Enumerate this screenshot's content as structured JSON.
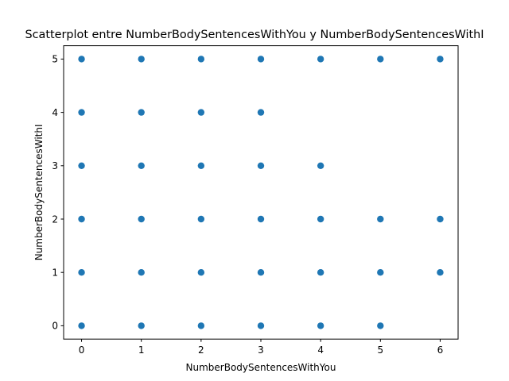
{
  "chart_data": {
    "type": "scatter",
    "title": "Scatterplot entre NumberBodySentencesWithYou y NumberBodySentencesWithI",
    "xlabel": "NumberBodySentencesWithYou",
    "ylabel": "NumberBodySentencesWithI",
    "xlim": [
      -0.3,
      6.3
    ],
    "ylim": [
      -0.25,
      5.25
    ],
    "xticks": [
      "0",
      "1",
      "2",
      "3",
      "4",
      "5",
      "6"
    ],
    "yticks": [
      "0",
      "1",
      "2",
      "3",
      "4",
      "5"
    ],
    "grid": false,
    "marker_color": "#1f77b4",
    "series": [
      {
        "x": [
          0,
          0,
          0,
          0,
          0,
          0,
          1,
          1,
          1,
          1,
          1,
          1,
          2,
          2,
          2,
          2,
          2,
          2,
          3,
          3,
          3,
          3,
          3,
          3,
          4,
          4,
          4,
          4,
          4,
          5,
          5,
          5,
          5,
          6,
          6,
          6
        ],
        "y": [
          0,
          1,
          2,
          3,
          4,
          5,
          0,
          1,
          2,
          3,
          4,
          5,
          0,
          1,
          2,
          3,
          4,
          5,
          0,
          1,
          2,
          3,
          4,
          5,
          0,
          1,
          2,
          3,
          5,
          0,
          1,
          2,
          5,
          1,
          2,
          5
        ]
      }
    ]
  }
}
